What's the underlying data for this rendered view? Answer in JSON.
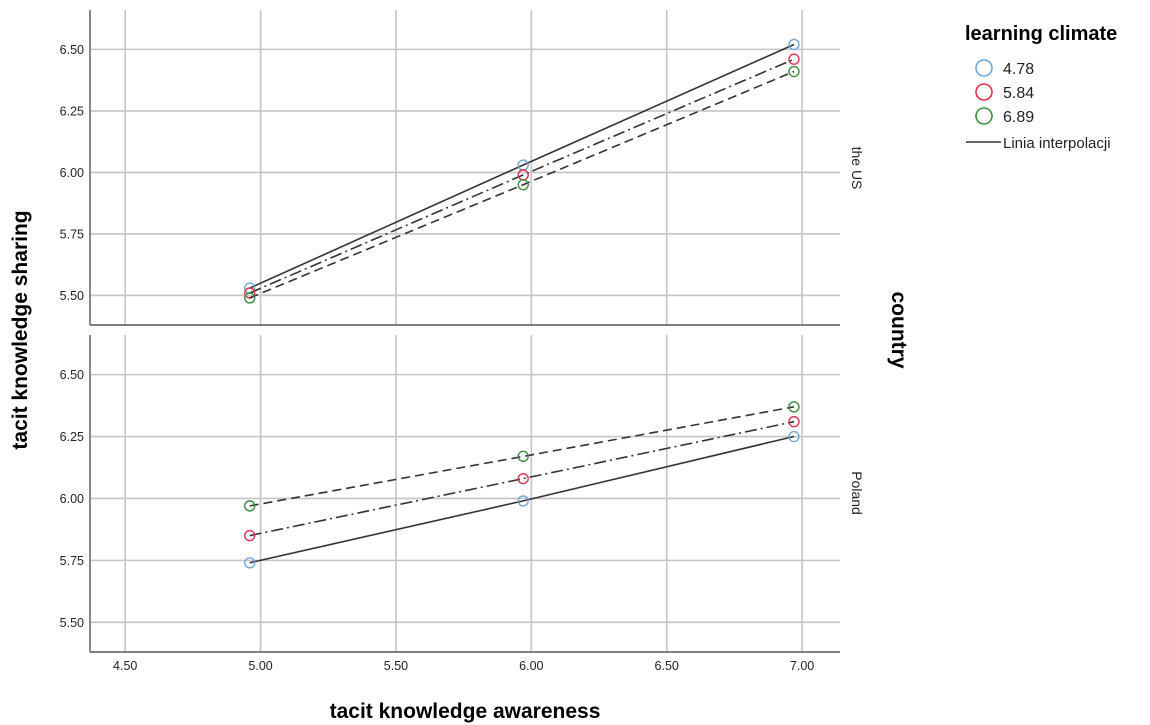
{
  "chart_data": {
    "type": "line",
    "xlabel": "tacit knowledge awareness",
    "ylabel": "tacit knowledge sharing",
    "facet_label": "country",
    "xlim": [
      4.37,
      7.14
    ],
    "ylim": [
      5.38,
      6.66
    ],
    "xticks": [
      "4.50",
      "5.00",
      "5.50",
      "6.00",
      "6.50",
      "7.00"
    ],
    "yticks": [
      "5.50",
      "5.75",
      "6.00",
      "6.25",
      "6.50"
    ],
    "grid": true,
    "legend": {
      "title": "learning climate",
      "placement": "top-right",
      "items": [
        "4.78",
        "5.84",
        "6.89"
      ],
      "line_label": "Linia interpolacji"
    },
    "series_colors": [
      "#6fa8dc",
      "#e0304e",
      "#3a8f3a"
    ],
    "line_styles": [
      "solid",
      "dashdot",
      "dashed"
    ],
    "panels": [
      {
        "label": "the US",
        "series": [
          {
            "name": "4.78",
            "x": [
              4.96,
              5.97,
              6.97
            ],
            "y": [
              5.53,
              6.03,
              6.52
            ]
          },
          {
            "name": "5.84",
            "x": [
              4.96,
              5.97,
              6.97
            ],
            "y": [
              5.51,
              5.99,
              6.46
            ]
          },
          {
            "name": "6.89",
            "x": [
              4.96,
              5.97,
              6.97
            ],
            "y": [
              5.49,
              5.95,
              6.41
            ]
          }
        ]
      },
      {
        "label": "Poland",
        "series": [
          {
            "name": "4.78",
            "x": [
              4.96,
              5.97,
              6.97
            ],
            "y": [
              5.74,
              5.99,
              6.25
            ]
          },
          {
            "name": "5.84",
            "x": [
              4.96,
              5.97,
              6.97
            ],
            "y": [
              5.85,
              6.08,
              6.31
            ]
          },
          {
            "name": "6.89",
            "x": [
              4.96,
              5.97,
              6.97
            ],
            "y": [
              5.97,
              6.17,
              6.37
            ]
          }
        ]
      }
    ]
  }
}
